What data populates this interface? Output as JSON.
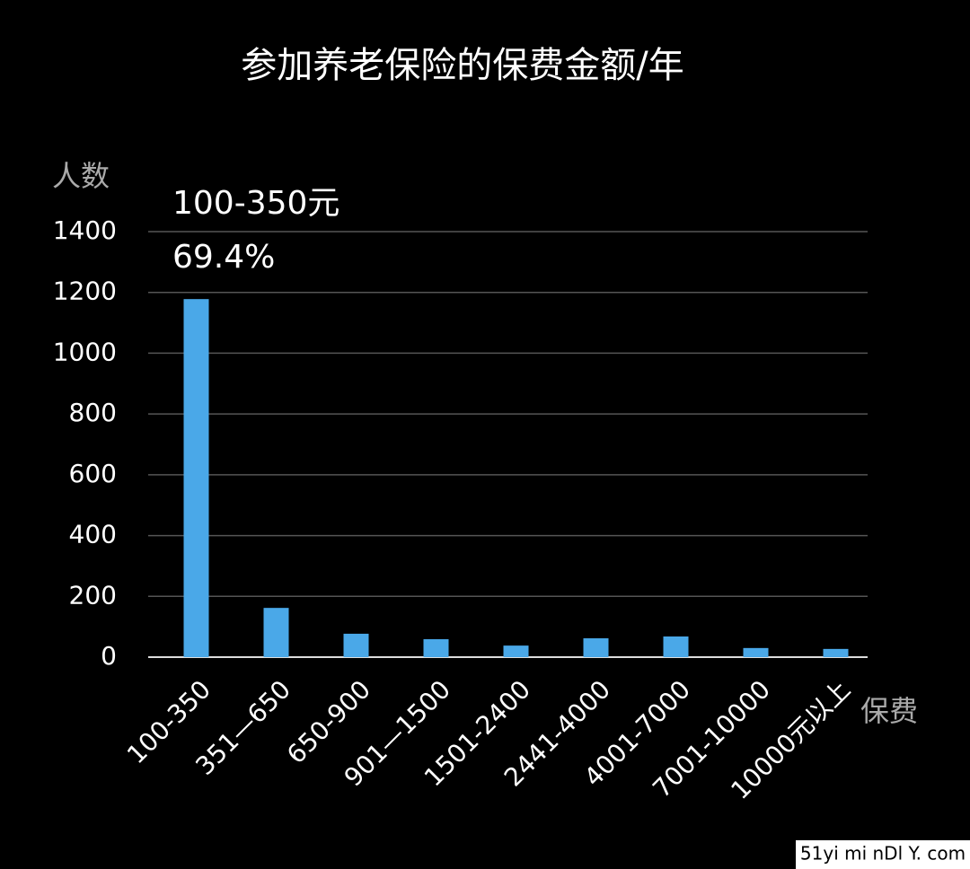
{
  "chart_data": {
    "type": "bar",
    "title": "参加养老保险的保费金额/年",
    "y_label": "人数",
    "x_label": "保费",
    "annotation": [
      "100-350元",
      "69.4%"
    ],
    "watermark": "51yi mi nDl Y. com",
    "categories": [
      "100-350",
      "351—650",
      "650-900",
      "901—1500",
      "1501-2400",
      "2441-4000",
      "4001-7000",
      "7001-10000",
      "10000元以上"
    ],
    "values": [
      1178,
      162,
      77,
      59,
      38,
      62,
      68,
      30,
      27
    ],
    "color": "#4aa8e8",
    "ylim": [
      0,
      1400
    ],
    "yticks": [
      0,
      200,
      400,
      600,
      800,
      1000,
      1200,
      1400
    ],
    "grid": true
  }
}
